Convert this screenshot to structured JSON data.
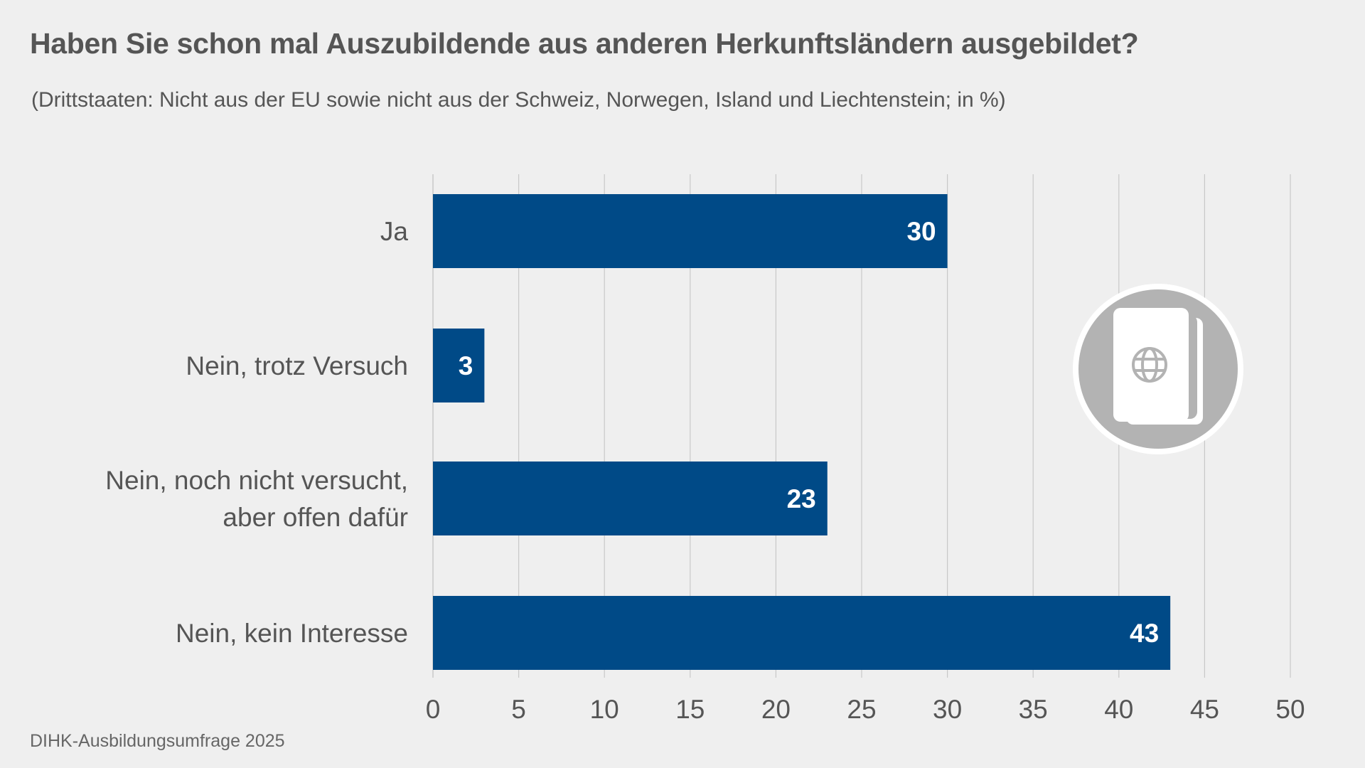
{
  "title": "Haben Sie schon mal Auszubildende aus anderen Herkunftsländern ausgebildet?",
  "subtitle": "(Drittstaaten: Nicht aus der EU sowie nicht aus der Schweiz, Norwegen, Island und Liechtenstein; in %)",
  "source": "DIHK-Ausbildungsumfrage 2025",
  "icon": "passport-icon",
  "colors": {
    "bar": "#004a87",
    "grid": "#c8c8c8",
    "background": "#efefef",
    "icon_circle": "#b3b3b3"
  },
  "chart_data": {
    "type": "bar",
    "orientation": "horizontal",
    "categories": [
      [
        "Ja"
      ],
      [
        "Nein, trotz Versuch"
      ],
      [
        "Nein, noch nicht versucht,",
        "aber offen dafür"
      ],
      [
        "Nein, kein Interesse"
      ]
    ],
    "values": [
      30,
      3,
      23,
      43
    ],
    "xlim": [
      0,
      50
    ],
    "xticks": [
      0,
      5,
      10,
      15,
      20,
      25,
      30,
      35,
      40,
      45,
      50
    ],
    "grid": true,
    "data_labels": true
  }
}
